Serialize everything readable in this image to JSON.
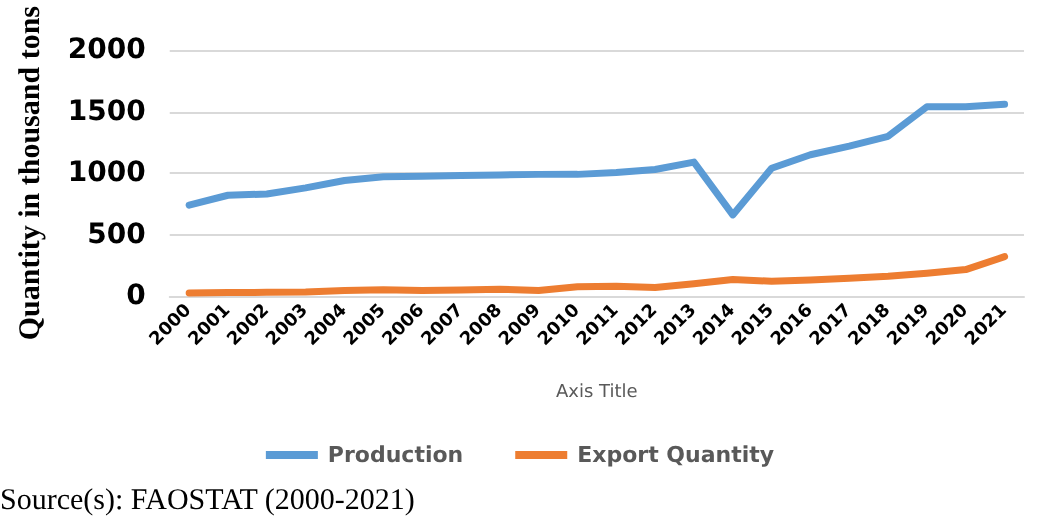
{
  "chart_data": {
    "type": "line",
    "xlabel": "Axis Title",
    "ylabel": "Quantity in thousand tons",
    "categories": [
      "2000",
      "2001",
      "2002",
      "2003",
      "2004",
      "2005",
      "2006",
      "2007",
      "2008",
      "2009",
      "2010",
      "2011",
      "2012",
      "2013",
      "2014",
      "2015",
      "2016",
      "2017",
      "2018",
      "2019",
      "2020",
      "2021"
    ],
    "series": [
      {
        "name": "Production",
        "color": "#5b9bd5",
        "values": [
          740,
          820,
          830,
          880,
          940,
          970,
          975,
          980,
          985,
          990,
          990,
          1005,
          1030,
          1090,
          660,
          1040,
          1150,
          1220,
          1300,
          1540,
          1540,
          1560
        ]
      },
      {
        "name": "Export Quantity",
        "color": "#ed7d31",
        "values": [
          25,
          28,
          30,
          32,
          45,
          50,
          45,
          48,
          55,
          45,
          75,
          80,
          70,
          100,
          135,
          120,
          130,
          145,
          160,
          185,
          215,
          320
        ]
      }
    ],
    "ylim": [
      0,
      2000
    ],
    "yticks": [
      0,
      500,
      1000,
      1500,
      2000
    ],
    "grid": "y",
    "legend": "bottom",
    "marker": "none",
    "line_style": "solid",
    "annotations": [
      "Source(s): FAOSTAT (2000-2021)"
    ]
  }
}
